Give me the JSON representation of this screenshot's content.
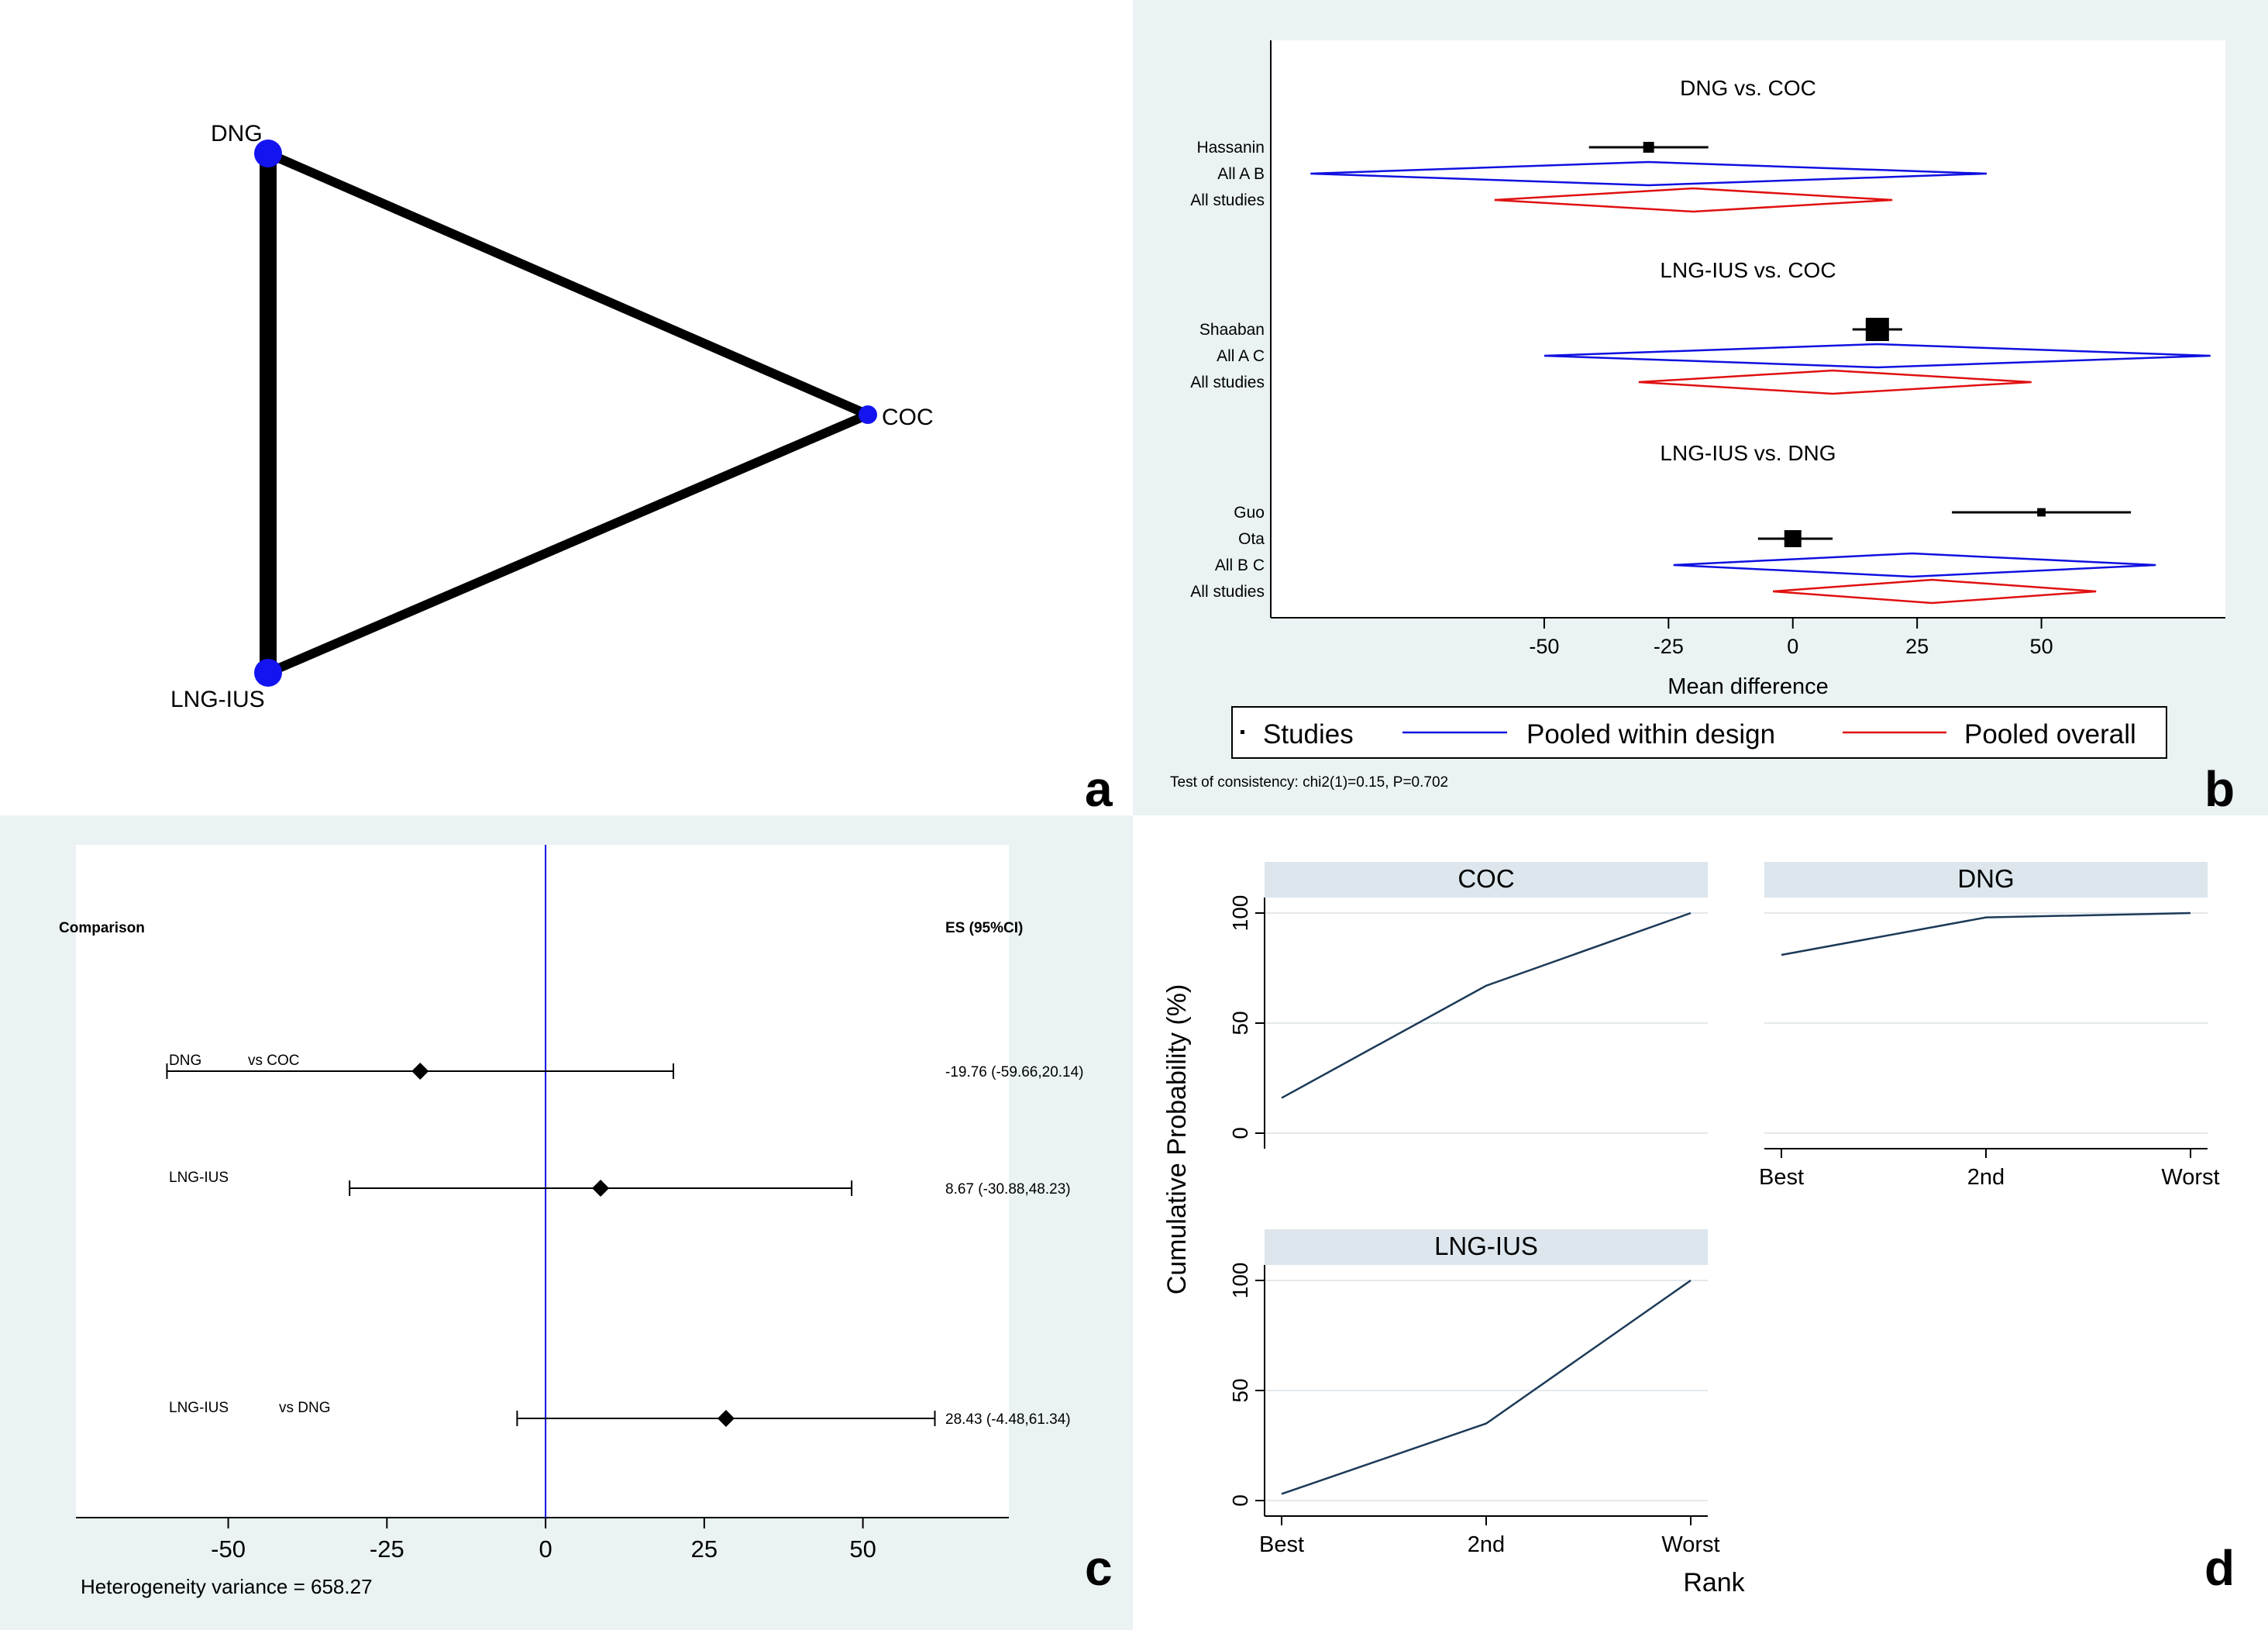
{
  "panel_letters": {
    "a": "a",
    "b": "b",
    "c": "c",
    "d": "d"
  },
  "colors": {
    "panel_bg": "#eaf2f3",
    "plot_bg": "#ffffff",
    "blue": "#1010e0",
    "red": "#e01010",
    "network_node": "#1414f0",
    "rank_line": "#1c3a57",
    "strip_bg": "#dce6ec"
  },
  "chart_data": [
    {
      "id": "a",
      "type": "network",
      "nodes": [
        {
          "id": "DNG",
          "label": "DNG"
        },
        {
          "id": "COC",
          "label": "COC"
        },
        {
          "id": "LNG-IUS",
          "label": "LNG-IUS"
        }
      ],
      "edges": [
        {
          "from": "DNG",
          "to": "LNG-IUS",
          "studies": 2
        },
        {
          "from": "DNG",
          "to": "COC",
          "studies": 1
        },
        {
          "from": "LNG-IUS",
          "to": "COC",
          "studies": 1
        }
      ]
    },
    {
      "id": "b",
      "type": "forest",
      "xlabel": "Mean difference",
      "xlim": [
        -105,
        87
      ],
      "xticks": [
        -50,
        -25,
        0,
        25,
        50
      ],
      "note": "Test of consistency: chi2(1)=0.15, P=0.702",
      "legend": [
        "Studies",
        "Pooled within design",
        "Pooled overall"
      ],
      "groups": [
        {
          "title": "DNG vs. COC",
          "rows": [
            {
              "label": "Hassanin",
              "kind": "study",
              "est": -29,
              "lo": -41,
              "hi": -17,
              "w": 1
            },
            {
              "label": "All A B",
              "kind": "design",
              "est": -29,
              "lo": -97,
              "hi": 39
            },
            {
              "label": "All studies",
              "kind": "overall",
              "est": -20,
              "lo": -60,
              "hi": 20
            }
          ]
        },
        {
          "title": "LNG-IUS vs. COC",
          "rows": [
            {
              "label": "Shaaban",
              "kind": "study",
              "est": 17,
              "lo": 12,
              "hi": 22,
              "w": 3
            },
            {
              "label": "All A C",
              "kind": "design",
              "est": 17,
              "lo": -50,
              "hi": 84
            },
            {
              "label": "All studies",
              "kind": "overall",
              "est": 8,
              "lo": -31,
              "hi": 48
            }
          ]
        },
        {
          "title": "LNG-IUS vs. DNG",
          "rows": [
            {
              "label": "Guo",
              "kind": "study",
              "est": 50,
              "lo": 32,
              "hi": 68,
              "w": 0.6
            },
            {
              "label": "Ota",
              "kind": "study",
              "est": 0,
              "lo": -7,
              "hi": 8,
              "w": 2
            },
            {
              "label": "All B C",
              "kind": "design",
              "est": 24,
              "lo": -24,
              "hi": 73
            },
            {
              "label": "All studies",
              "kind": "overall",
              "est": 28,
              "lo": -4,
              "hi": 61
            }
          ]
        }
      ]
    },
    {
      "id": "c",
      "type": "forest",
      "col_comparison": "Comparison",
      "col_es": "ES (95%CI)",
      "xlim": [
        -74,
        73
      ],
      "xticks": [
        -50,
        -25,
        0,
        25,
        50
      ],
      "note": "Heterogeneity variance = 658.27",
      "rows": [
        {
          "t1": "DNG",
          "t2": "vs COC",
          "est": -19.76,
          "lo": -59.66,
          "hi": 20.14,
          "es": "-19.76 (-59.66,20.14)"
        },
        {
          "t1": "LNG-IUS",
          "t2": "",
          "est": 8.67,
          "lo": -30.88,
          "hi": 48.23,
          "es": "8.67 (-30.88,48.23)"
        },
        {
          "t1": "LNG-IUS",
          "t2": "vs DNG",
          "est": 28.43,
          "lo": -4.48,
          "hi": 61.34,
          "es": "28.43 (-4.48,61.34)"
        }
      ]
    },
    {
      "id": "d",
      "type": "line",
      "xlabel": "Rank",
      "ylabel": "Cumulative Probability (%)",
      "categories": [
        "Best",
        "2nd",
        "Worst"
      ],
      "ylim": [
        0,
        100
      ],
      "yticks": [
        0,
        50,
        100
      ],
      "series": [
        {
          "name": "COC",
          "values": [
            16,
            67,
            100
          ]
        },
        {
          "name": "DNG",
          "values": [
            81,
            98,
            100
          ]
        },
        {
          "name": "LNG-IUS",
          "values": [
            3,
            35,
            100
          ]
        }
      ]
    }
  ]
}
